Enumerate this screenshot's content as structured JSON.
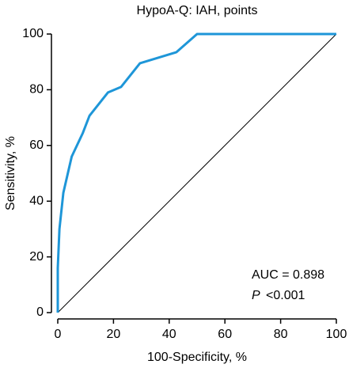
{
  "chart_data": {
    "type": "line",
    "title": "HypoA-Q: IAH, points",
    "xlabel": "100-Specificity, %",
    "ylabel": "Sensitivity, %",
    "series": [
      {
        "color": "#1e96d8",
        "x": [
          0,
          0,
          0.6,
          2,
          5,
          9,
          11.4,
          18,
          22.7,
          29.5,
          42.6,
          50,
          100
        ],
        "values": [
          0,
          16,
          30,
          43,
          56,
          64.5,
          70.7,
          79,
          81,
          89.5,
          93.5,
          100,
          100
        ]
      },
      {
        "color": "#000000",
        "x": [
          0,
          100
        ],
        "values": [
          0,
          100
        ]
      }
    ],
    "xlim": [
      0,
      100
    ],
    "xticks": [
      0,
      20,
      40,
      60,
      80,
      100
    ],
    "ylim": [
      0,
      100
    ],
    "yticks": [
      0,
      20,
      40,
      60,
      80,
      100
    ],
    "annotations": {
      "auc": "AUC = 0.898",
      "p_symbol": "P",
      "p_value": "<0.001"
    }
  }
}
